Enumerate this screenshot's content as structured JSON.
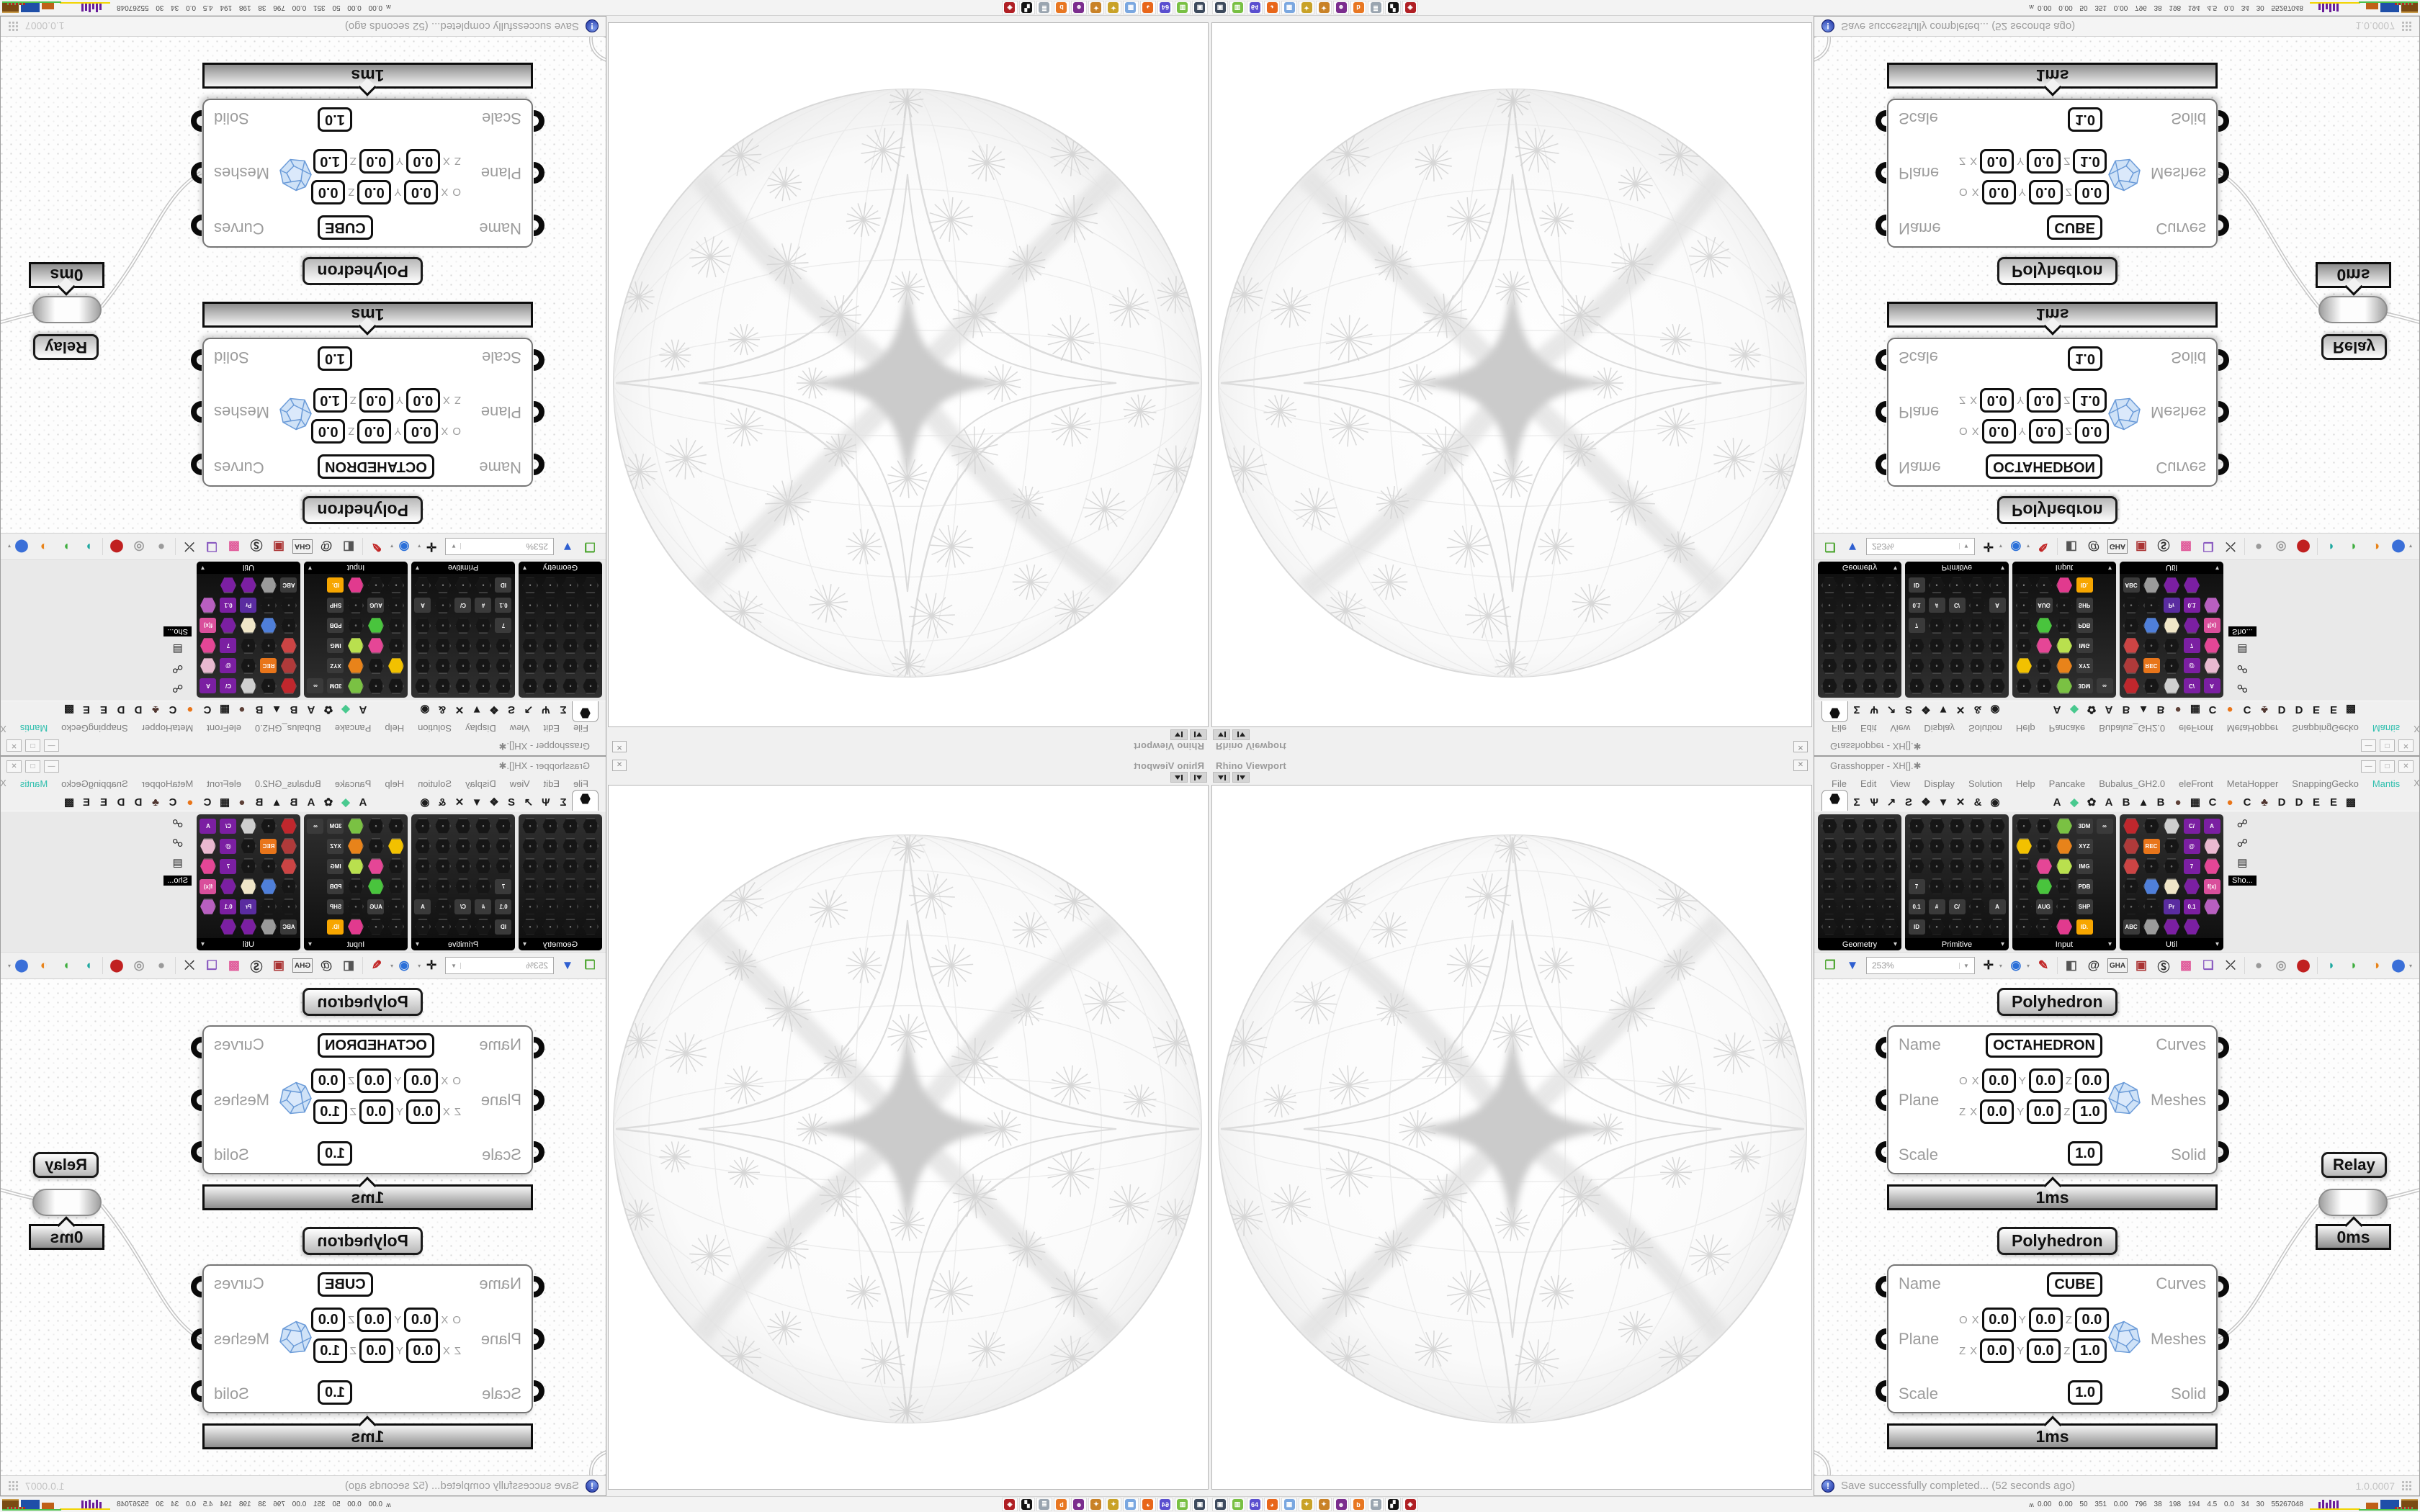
{
  "viewport_panel": {
    "tab_label": "Rhino Viewport",
    "close_glyph": "✕"
  },
  "gh_window": {
    "title": "Grasshopper - XH[].✱",
    "controls": {
      "minimize": "—",
      "maximize": "□",
      "close": "✕"
    },
    "menu": {
      "items": [
        {
          "label": "File"
        },
        {
          "label": "Edit"
        },
        {
          "label": "View"
        },
        {
          "label": "Display"
        },
        {
          "label": "Solution"
        },
        {
          "label": "Help"
        },
        {
          "label": "Pancake"
        },
        {
          "label": "Bubalus_GH2.0"
        },
        {
          "label": "eleFront"
        },
        {
          "label": "MetaHopper"
        },
        {
          "label": "SnappingGecko"
        },
        {
          "label": "Mantis",
          "color": "#2fbfae"
        }
      ],
      "right_text": "XH[].✱"
    },
    "tabs": [
      {
        "glyph": "hex",
        "active": true
      },
      {
        "glyph": "Σ"
      },
      {
        "glyph": "Ѱ"
      },
      {
        "glyph": "↗"
      },
      {
        "glyph": "Ƨ"
      },
      {
        "glyph": "❖"
      },
      {
        "glyph": "▼"
      },
      {
        "glyph": "✕"
      },
      {
        "glyph": "&"
      },
      {
        "glyph": "◉"
      },
      {
        "gap": true
      },
      {
        "glyph": "A"
      },
      {
        "glyph": "◆",
        "color": "#49c98f"
      },
      {
        "glyph": "✿"
      },
      {
        "glyph": "A"
      },
      {
        "glyph": "B"
      },
      {
        "glyph": "▲"
      },
      {
        "glyph": "B"
      },
      {
        "glyph": "●",
        "color": "#5d4037"
      },
      {
        "glyph": "▦"
      },
      {
        "glyph": "C"
      },
      {
        "glyph": "●",
        "color": "#e8751a"
      },
      {
        "glyph": "C"
      },
      {
        "glyph": "♣",
        "color": "#4e342e"
      },
      {
        "glyph": "D"
      },
      {
        "glyph": "D"
      },
      {
        "glyph": "E"
      },
      {
        "glyph": "E"
      },
      {
        "glyph": "▩"
      }
    ],
    "palette": {
      "groups": [
        {
          "label": "Geometry",
          "cols": 4,
          "cells": [
            "",
            "",
            "",
            "",
            "",
            "",
            "",
            "",
            "",
            "",
            "",
            "",
            "",
            "",
            "",
            "",
            "",
            "",
            "",
            "",
            "",
            "",
            ""
          ]
        },
        {
          "label": "Primitive",
          "cols": 5,
          "cells": [
            "",
            "",
            "",
            "",
            "",
            "",
            "",
            "",
            "",
            "",
            "",
            "",
            "",
            "",
            "",
            "t:7",
            "",
            "",
            "",
            "",
            "t:0.1",
            "t:#",
            "t:C/",
            "",
            "t:A",
            "t:ID",
            "",
            "",
            ""
          ]
        },
        {
          "label": "Input",
          "cols": 5,
          "cells": [
            "",
            "",
            "c:#7ac143",
            "t:3DM",
            "t:∞",
            "c:#f2c100",
            "",
            "c:#e8831a",
            "t:XYZ",
            "x",
            "",
            "c:#e54696",
            "c:#b9e04e",
            "t:IMG",
            "x",
            "",
            "c:#49c43d",
            "",
            "t:PDB",
            "x",
            "",
            "t:AUG",
            "",
            "t:SHP",
            "x",
            "",
            "",
            "c:#e13a8e",
            "t:ID.:#f7a600",
            "x"
          ]
        },
        {
          "label": "Util",
          "cols": 5,
          "cells": [
            "c:#c0272d",
            "",
            "c:#cfcfcf",
            "t:C/:#7b1fa2",
            "t:A:#7b1fa2",
            "c:#b03a3a",
            "t:REC:#e8751a",
            "",
            "t:@:#7b1fa2",
            "c:#e9b9d0",
            "c:#cc4444",
            "",
            "",
            "t:7:#7b1fa2",
            "c:#e54696",
            "",
            "c:#4f7fd9",
            "c:#f0e6c8",
            "c:#7b1fa2",
            "t:f(x):#d94f9b",
            "",
            "",
            "t:Pr:#5a2ca0",
            "t:0.1:#7b1fa2",
            "c:#b85fc0",
            "t:ABC",
            "c:#9a9a9a",
            "c:#7b1fa2",
            "c:#7b1fa2",
            "x"
          ]
        }
      ],
      "strip_icons": [
        "☍",
        "☍",
        "▤"
      ],
      "show_more_tooltip": "Sho..."
    },
    "toolbar": {
      "zoom_value": "253%",
      "icons": [
        {
          "name": "open-file-icon",
          "glyph": "❐",
          "color": "#4ca52f"
        },
        {
          "name": "save-file-icon",
          "glyph": "▼",
          "color": "#2f5fd0"
        },
        {
          "name": "zoom-extents-icon",
          "glyph": "✛",
          "color": "#111"
        },
        {
          "name": "preview-eye-icon",
          "glyph": "◉",
          "color": "#2a6fd8"
        },
        {
          "name": "sketch-pen-icon",
          "glyph": "✎",
          "color": "#c02020"
        },
        {
          "name": "mesh-preview-icon",
          "glyph": "◧",
          "color": "#555"
        },
        {
          "name": "remote-at-icon",
          "glyph": "@",
          "color": "#333"
        },
        {
          "name": "gha-assembly-icon",
          "glyph": "GHA",
          "color": "#333"
        },
        {
          "name": "window-alert-icon",
          "glyph": "▣",
          "color": "#a33"
        },
        {
          "name": "finder-icon",
          "glyph": "Ⓢ",
          "color": "#333"
        },
        {
          "name": "package-icon",
          "glyph": "▩",
          "color": "#e05a9a"
        },
        {
          "name": "galapagos-icon",
          "glyph": "❑",
          "color": "#8a5ac0"
        },
        {
          "name": "crossover-icon",
          "glyph": "⤫",
          "color": "#333"
        },
        {
          "name": "sphere-grey-icon",
          "glyph": "●",
          "color": "#9a9a9a"
        },
        {
          "name": "cylinder-grey-icon",
          "glyph": "◎",
          "color": "#9a9a9a"
        },
        {
          "name": "cylinder-red-icon",
          "glyph": "⬤",
          "color": "#c02020"
        },
        {
          "name": "ball-teal-icon",
          "glyph": "◗",
          "color": "#1fa8a0"
        },
        {
          "name": "ball-green-icon",
          "glyph": "◗",
          "color": "#3fae3f"
        },
        {
          "name": "ball-orange-icon",
          "glyph": "◑",
          "color": "#e8831a"
        },
        {
          "name": "ball-blue-icon",
          "glyph": "⬤",
          "color": "#3a6fd8"
        }
      ]
    },
    "canvas": {
      "components": [
        {
          "header": "Polyhedron",
          "name_value": "OCTAHEDRON",
          "inputs": [
            "Name",
            "Plane",
            "Scale"
          ],
          "outputs": [
            "Curves",
            "Meshes",
            "Solid"
          ],
          "plane": [
            [
              "O",
              "X",
              "0.0",
              "Y",
              "0.0",
              "Z",
              "0.0"
            ],
            [
              "Z",
              "X",
              "0.0",
              "Y",
              "0.0",
              "Z",
              "1.0"
            ]
          ],
          "scale_value": "1.0",
          "time": "1ms"
        },
        {
          "header": "Polyhedron",
          "name_value": "CUBE",
          "inputs": [
            "Name",
            "Plane",
            "Scale"
          ],
          "outputs": [
            "Curves",
            "Meshes",
            "Solid"
          ],
          "plane": [
            [
              "O",
              "X",
              "0.0",
              "Y",
              "0.0",
              "Z",
              "0.0"
            ],
            [
              "Z",
              "X",
              "0.0",
              "Y",
              "0.0",
              "Z",
              "1.0"
            ]
          ],
          "scale_value": "1.0",
          "time": "1ms"
        }
      ],
      "relay": {
        "label": "Relay",
        "time": "0ms"
      }
    },
    "statusbar": {
      "message": "Save successfully completed... (52 seconds ago)",
      "version": "1.0.0007"
    }
  },
  "taskbar": {
    "apps": [
      {
        "name": "system-monitor-app",
        "color": "#3d4a5d",
        "glyph": "▣"
      },
      {
        "name": "package-manager-app",
        "color": "#79c043",
        "glyph": "▥"
      },
      {
        "name": "backup-64-app",
        "color": "#5a4fcf",
        "glyph": "64"
      },
      {
        "name": "firefox-app",
        "color": "#e8661a",
        "glyph": "◕"
      },
      {
        "name": "calculator-app",
        "color": "#7aa7e0",
        "glyph": "▦"
      },
      {
        "name": "paint-easel-app",
        "color": "#c9a227",
        "glyph": "✦"
      },
      {
        "name": "paint-easel-2-app",
        "color": "#c98227",
        "glyph": "✦"
      },
      {
        "name": "avatar-app",
        "color": "#7b2d8e",
        "glyph": "☻"
      },
      {
        "name": "blender-app",
        "color": "#e87722",
        "glyph": "b"
      },
      {
        "name": "document-scroll-app",
        "color": "#9aa5b0",
        "glyph": "≣"
      },
      {
        "name": "dark-utility-app",
        "color": "#141414",
        "glyph": "▞"
      },
      {
        "name": "red-card-app",
        "color": "#b01f24",
        "glyph": "◈"
      }
    ],
    "tray": {
      "expand_glyph": "ʌʌ",
      "numbers": "0.00 0.00 50 351 0.00 796 38 198 194 4.5 0.0 34 30 55267048",
      "graph_colors": {
        "cpu_line": "#f2d400",
        "spikes": "#6a1c9a",
        "block1": "#c06018",
        "block2": "#1f4fa8",
        "block3": "#7a4a12",
        "net_line": "#4cc04c"
      }
    }
  },
  "colors": {
    "mantis_accent": "#2fbfae",
    "wire": "#c6c6c6",
    "canvas_dot": "#d9d9d9"
  }
}
